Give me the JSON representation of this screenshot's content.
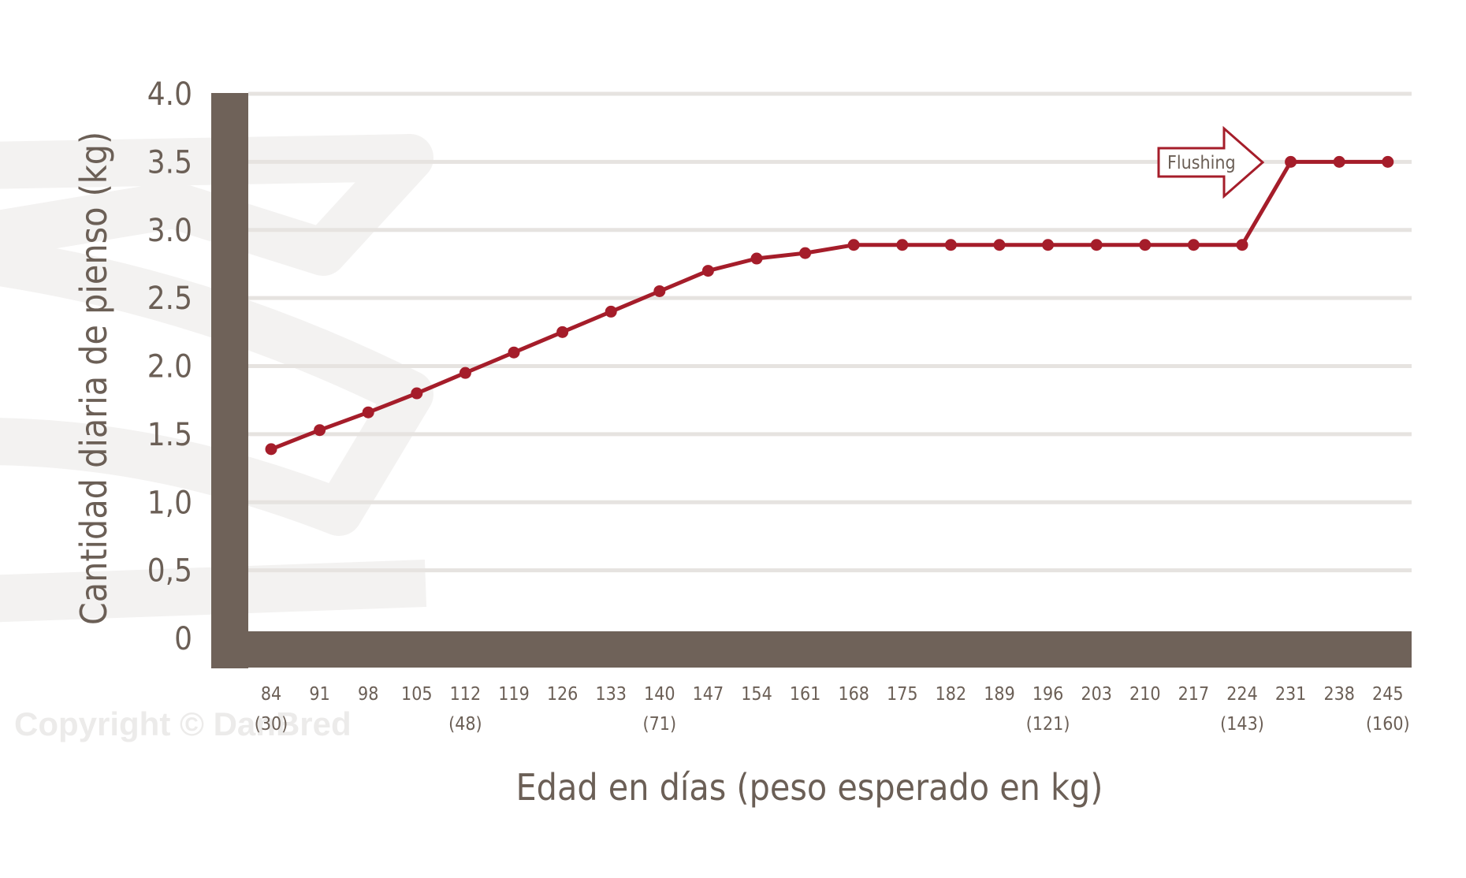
{
  "watermark": "Copyright © DanBred",
  "colors": {
    "line": "#a51d2a",
    "axis": "#6f6259",
    "grid": "#e6e3e0",
    "text": "#6b5f56"
  },
  "chart_data": {
    "type": "line",
    "title": "",
    "xlabel": "Edad en días (peso esperado en kg)",
    "ylabel": "Cantidad diaria de pienso (kg)",
    "ylim": [
      0,
      4.0
    ],
    "y_ticks": [
      {
        "value": 0,
        "label": "0"
      },
      {
        "value": 0.5,
        "label": "0,5"
      },
      {
        "value": 1.0,
        "label": "1,0"
      },
      {
        "value": 1.5,
        "label": "1.5"
      },
      {
        "value": 2.0,
        "label": "2.0"
      },
      {
        "value": 2.5,
        "label": "2.5"
      },
      {
        "value": 3.0,
        "label": "3.0"
      },
      {
        "value": 3.5,
        "label": "3.5"
      },
      {
        "value": 4.0,
        "label": "4.0"
      }
    ],
    "grid": true,
    "categories": [
      "84",
      "91",
      "98",
      "105",
      "112",
      "119",
      "126",
      "133",
      "140",
      "147",
      "154",
      "161",
      "168",
      "175",
      "182",
      "189",
      "196",
      "203",
      "210",
      "217",
      "224",
      "231",
      "238",
      "245"
    ],
    "weights": [
      "(30)",
      "",
      "",
      "",
      "(48)",
      "",
      "",
      "",
      "(71)",
      "",
      "",
      "",
      "",
      "",
      "",
      "",
      "(121)",
      "",
      "",
      "",
      "(143)",
      "",
      "",
      "(160)"
    ],
    "series": [
      {
        "values": [
          1.39,
          1.53,
          1.66,
          1.8,
          1.95,
          2.1,
          2.25,
          2.4,
          2.55,
          2.7,
          2.79,
          2.83,
          2.89,
          2.89,
          2.89,
          2.89,
          2.89,
          2.89,
          2.89,
          2.89,
          2.89,
          3.5,
          3.5,
          3.5
        ]
      }
    ],
    "annotation": {
      "text": "Flushing",
      "value": 3.5
    }
  }
}
